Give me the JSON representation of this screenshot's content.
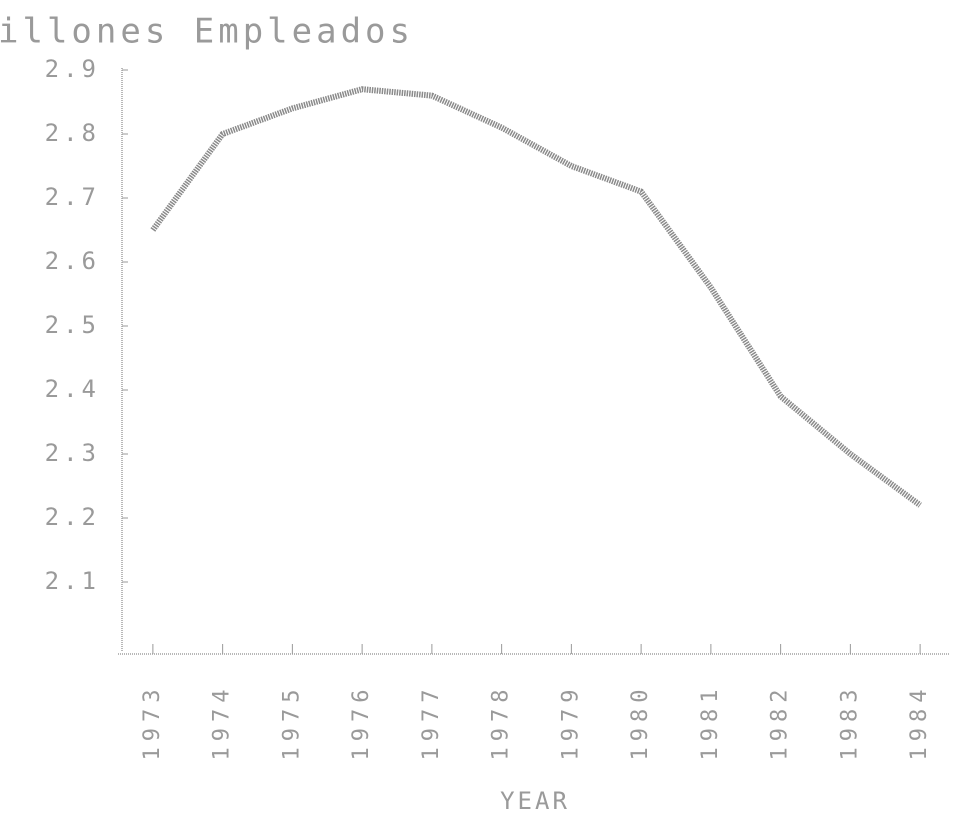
{
  "chart_data": {
    "type": "line",
    "title": "illones Empleados",
    "x_label": "YEAR",
    "x": [
      1973,
      1974,
      1975,
      1976,
      1977,
      1978,
      1979,
      1980,
      1981,
      1982,
      1983,
      1984
    ],
    "series": [
      {
        "color": "#8a8a8a",
        "values": [
          2.65,
          2.8,
          2.84,
          2.87,
          2.86,
          2.81,
          2.75,
          2.71,
          2.56,
          2.39,
          2.3,
          2.22
        ]
      }
    ],
    "xlim": [
      1972.5,
      1984.5
    ],
    "xticks": [
      1973,
      1974,
      1975,
      1976,
      1977,
      1978,
      1979,
      1980,
      1981,
      1982,
      1983,
      1984
    ],
    "ylim": [
      2.0,
      2.9
    ],
    "yticks": [
      2.1,
      2.2,
      2.3,
      2.4,
      2.5,
      2.6,
      2.7,
      2.8,
      2.9
    ]
  }
}
